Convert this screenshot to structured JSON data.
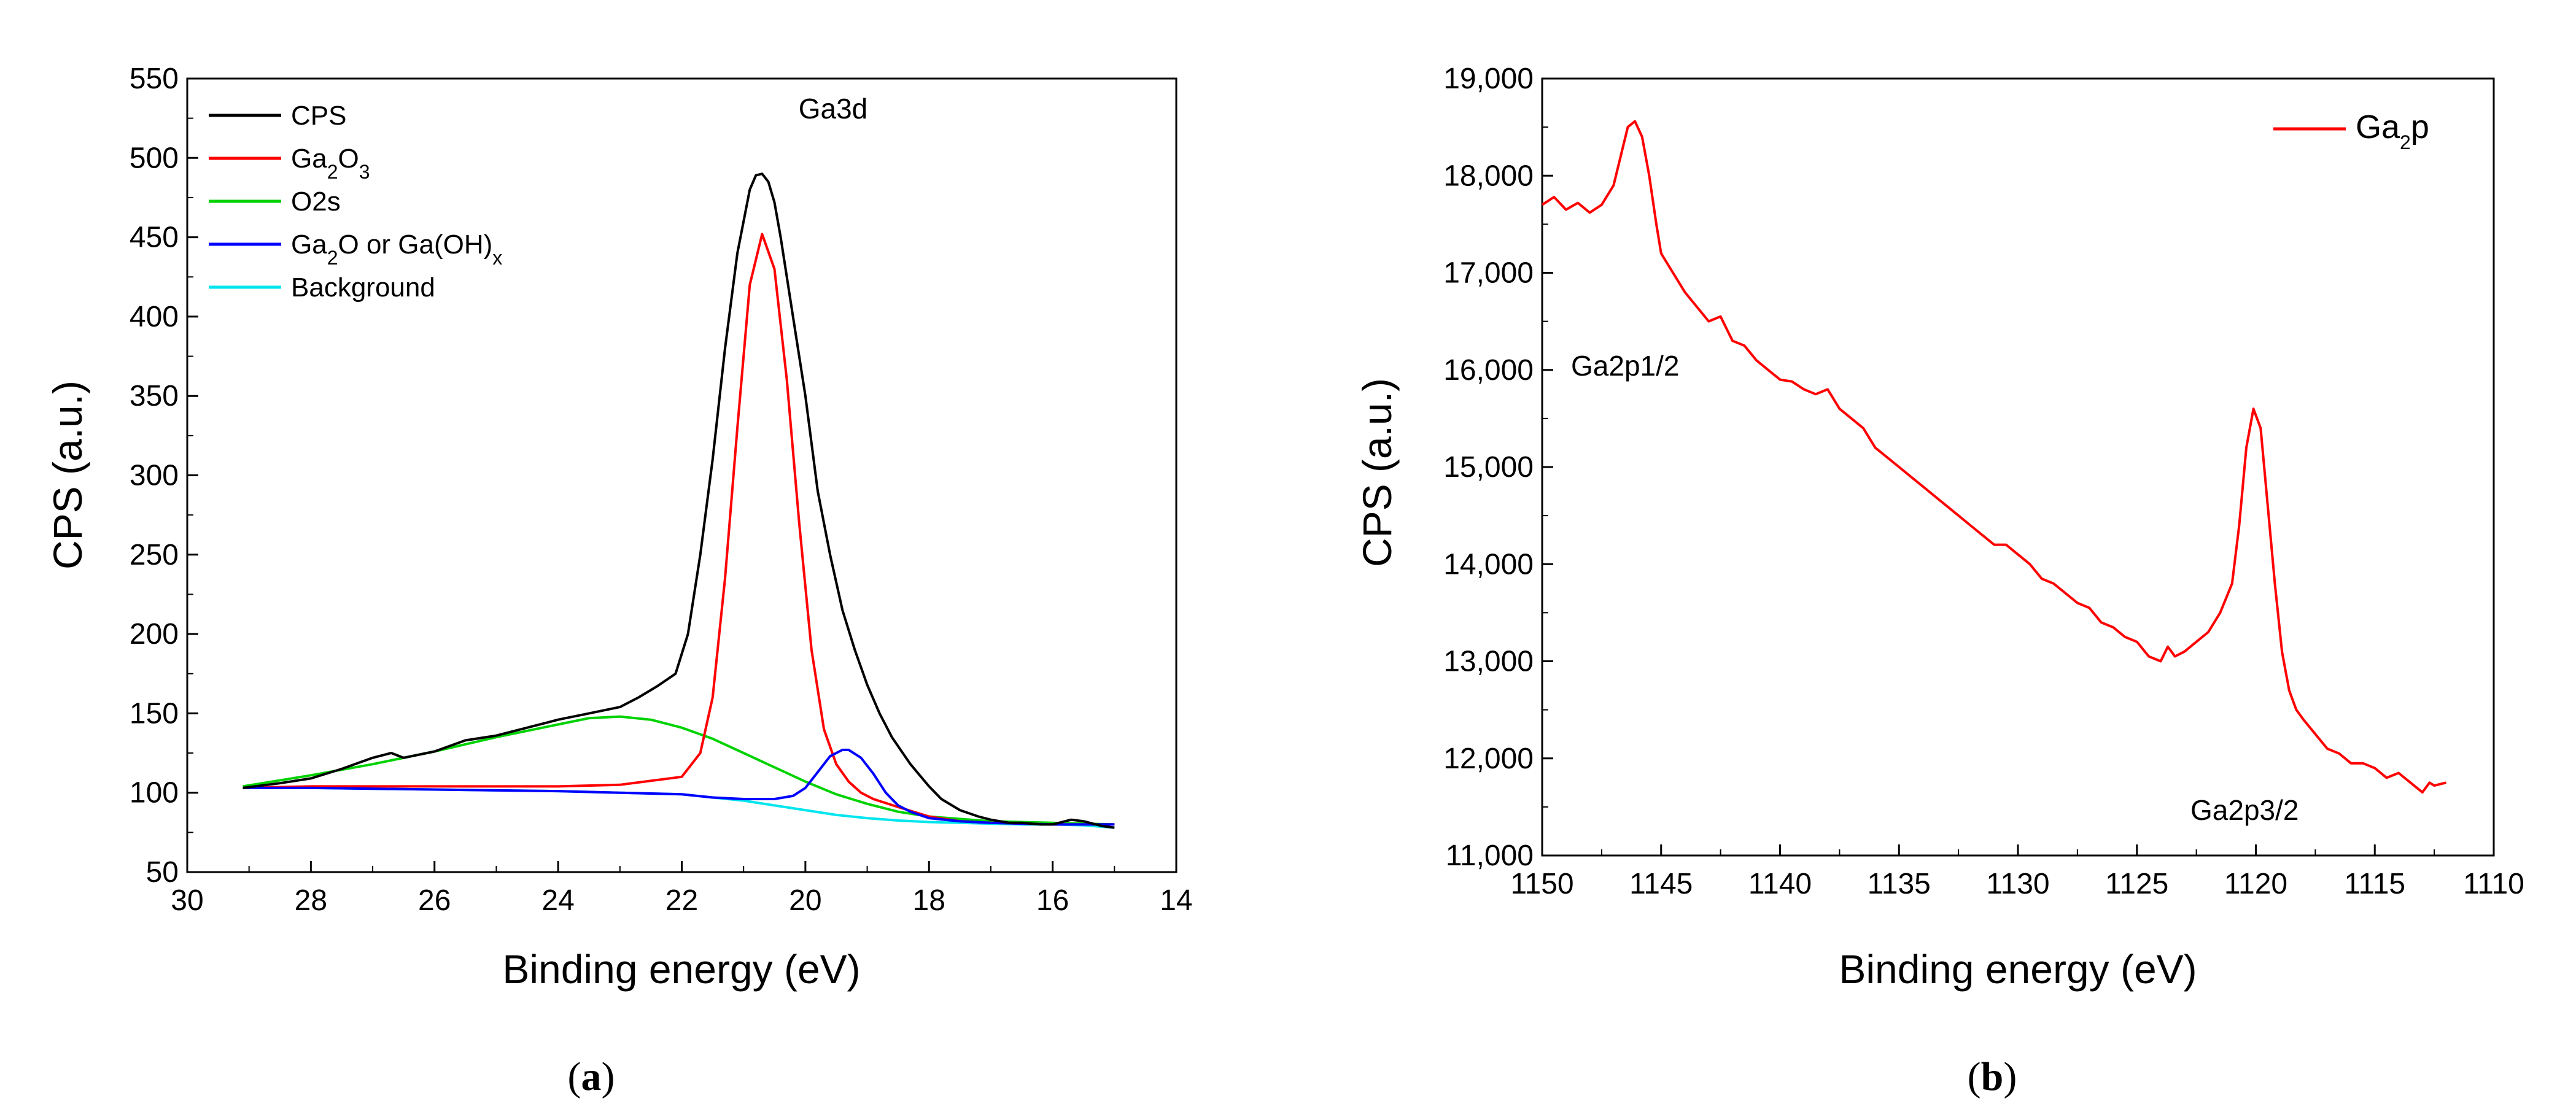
{
  "chart_data": [
    {
      "panel_label": "(a)",
      "panel_letter": "a",
      "type": "line",
      "xlabel": "Binding energy (eV)",
      "ylabel": "CPS (a.u.)",
      "xlim": [
        30,
        14
      ],
      "ylim": [
        50,
        550
      ],
      "x_ticks": [
        30,
        28,
        26,
        24,
        22,
        20,
        18,
        16,
        14
      ],
      "y_ticks": [
        50,
        100,
        150,
        200,
        250,
        300,
        350,
        400,
        450,
        500,
        550
      ],
      "annotation": "Ga3d",
      "legend_position": "top-left",
      "legend": [
        {
          "key": "cps",
          "label": "CPS",
          "color": "#000000"
        },
        {
          "key": "ga2o3",
          "label": "Ga2O3",
          "color": "#ff0000"
        },
        {
          "key": "o2s",
          "label": "O2s",
          "color": "#00d200"
        },
        {
          "key": "ga2o",
          "label": "Ga2O or Ga(OH)x",
          "color": "#0000ff"
        },
        {
          "key": "bg",
          "label": "Background",
          "color": "#00e5ee"
        }
      ],
      "series": [
        {
          "key": "bg",
          "name": "Background",
          "color": "#00e5ee",
          "x": [
            29.1,
            28,
            26,
            24,
            23,
            22,
            21.5,
            21,
            20.5,
            20,
            19.5,
            19,
            18.5,
            18,
            17.5,
            17,
            16.5,
            16,
            15.5,
            15
          ],
          "y": [
            103,
            103,
            102,
            101,
            100,
            99,
            97,
            95,
            92,
            89,
            86,
            84,
            82.5,
            81.5,
            81,
            80.5,
            80,
            80,
            79.5,
            78
          ]
        },
        {
          "key": "o2s",
          "name": "O2s",
          "color": "#00d200",
          "x": [
            29.1,
            28,
            27,
            26,
            25,
            24,
            23.5,
            23,
            22.5,
            22,
            21.5,
            21,
            20.5,
            20,
            19.5,
            19,
            18.5,
            18,
            17,
            16,
            15
          ],
          "y": [
            104,
            111,
            118,
            126,
            135,
            143,
            147,
            148,
            146,
            141,
            134,
            125,
            116,
            107,
            99,
            93,
            88,
            85,
            82,
            81,
            80
          ]
        },
        {
          "key": "ga2o3",
          "name": "Ga2O3",
          "color": "#ff0000",
          "x": [
            29.1,
            28,
            26,
            24,
            23,
            22,
            21.7,
            21.5,
            21.3,
            21.1,
            20.9,
            20.7,
            20.5,
            20.3,
            20.1,
            19.9,
            19.7,
            19.5,
            19.3,
            19.1,
            18.9,
            18.5,
            18,
            17.5,
            17,
            16,
            15
          ],
          "y": [
            103,
            104,
            104,
            104,
            105,
            110,
            125,
            160,
            235,
            330,
            420,
            452,
            430,
            360,
            270,
            190,
            140,
            118,
            107,
            100,
            96,
            91,
            85,
            82,
            81,
            80,
            80
          ]
        },
        {
          "key": "ga2o",
          "name": "Ga2O or Ga(OH)x",
          "color": "#0000ff",
          "x": [
            29.1,
            28,
            26,
            24,
            23,
            22,
            21.5,
            21,
            20.5,
            20.2,
            20,
            19.8,
            19.6,
            19.4,
            19.3,
            19.1,
            18.9,
            18.7,
            18.5,
            18.3,
            18,
            17.5,
            17,
            16,
            15
          ],
          "y": [
            103,
            103,
            102,
            101,
            100,
            99,
            97,
            96,
            96,
            98,
            103,
            113,
            123,
            127,
            127,
            122,
            112,
            100,
            92,
            88,
            84,
            82,
            81,
            80,
            80
          ]
        },
        {
          "key": "cps",
          "name": "CPS",
          "color": "#000000",
          "x": [
            29.1,
            28.5,
            28,
            27.5,
            27,
            26.7,
            26.5,
            26,
            25.5,
            25,
            24.5,
            24,
            23.5,
            23,
            22.7,
            22.4,
            22.1,
            21.9,
            21.7,
            21.5,
            21.3,
            21.1,
            20.9,
            20.8,
            20.7,
            20.6,
            20.5,
            20.4,
            20.2,
            20,
            19.8,
            19.6,
            19.4,
            19.2,
            19,
            18.8,
            18.6,
            18.3,
            18,
            17.8,
            17.5,
            17.2,
            17,
            16.7,
            16.5,
            16.2,
            16,
            15.7,
            15.5,
            15.2,
            15
          ],
          "y": [
            103,
            106,
            109,
            115,
            122,
            125,
            122,
            126,
            133,
            136,
            141,
            146,
            150,
            154,
            160,
            167,
            175,
            200,
            250,
            310,
            380,
            440,
            480,
            489,
            490,
            485,
            472,
            450,
            400,
            350,
            290,
            250,
            215,
            190,
            168,
            150,
            135,
            118,
            104,
            96,
            89,
            85,
            83,
            81,
            81,
            80,
            80,
            83,
            82,
            79,
            78
          ]
        }
      ]
    },
    {
      "panel_label": "(b)",
      "panel_letter": "b",
      "type": "line",
      "xlabel": "Binding energy (eV)",
      "ylabel": "CPS (a.u.)",
      "xlim": [
        1150,
        1110
      ],
      "ylim": [
        11000,
        19000
      ],
      "x_ticks": [
        1150,
        1145,
        1140,
        1135,
        1130,
        1125,
        1120,
        1115,
        1110
      ],
      "y_ticks": [
        11000,
        12000,
        13000,
        14000,
        15000,
        16000,
        17000,
        18000,
        19000
      ],
      "y_tick_labels": [
        "11,000",
        "12,000",
        "13,000",
        "14,000",
        "15,000",
        "16,000",
        "17,000",
        "18,000",
        "19,000"
      ],
      "legend_position": "top-right",
      "legend": [
        {
          "key": "ga2p",
          "label": "Ga2p",
          "color": "#ff0000"
        }
      ],
      "annotations": [
        {
          "text": "Ga2p1/2",
          "x": 1145.8,
          "y": 15950
        },
        {
          "text": "Ga2p3/2",
          "x": 1119.3,
          "y": 11950
        }
      ],
      "series": [
        {
          "key": "ga2p",
          "name": "Ga2p",
          "color": "#ff0000",
          "x": [
            1150,
            1149.5,
            1149,
            1148.5,
            1148,
            1147.5,
            1147,
            1146.7,
            1146.4,
            1146.1,
            1145.8,
            1145.5,
            1145.2,
            1145,
            1144.5,
            1144,
            1143.5,
            1143,
            1142.5,
            1142,
            1141.5,
            1141,
            1140.5,
            1140,
            1139.5,
            1139,
            1138.5,
            1138,
            1137.5,
            1137,
            1136.5,
            1136,
            1135.5,
            1135,
            1134.5,
            1134,
            1133.5,
            1133,
            1132.5,
            1132,
            1131.5,
            1131,
            1130.5,
            1130,
            1129.5,
            1129,
            1128.5,
            1128,
            1127.5,
            1127,
            1126.5,
            1126,
            1125.5,
            1125,
            1124.5,
            1124,
            1123.7,
            1123.4,
            1123,
            1122.5,
            1122,
            1121.5,
            1121,
            1120.7,
            1120.4,
            1120.1,
            1119.8,
            1119.5,
            1119.2,
            1118.9,
            1118.6,
            1118.3,
            1118,
            1117.5,
            1117,
            1116.5,
            1116,
            1115.5,
            1115,
            1114.5,
            1114,
            1113.5,
            1113,
            1112.7,
            1112.5,
            1112
          ],
          "y": [
            17700,
            17780,
            17650,
            17720,
            17620,
            17700,
            17900,
            18200,
            18500,
            18560,
            18400,
            18000,
            17500,
            17200,
            17000,
            16800,
            16650,
            16500,
            16550,
            16300,
            16250,
            16100,
            16000,
            15900,
            15880,
            15800,
            15750,
            15800,
            15600,
            15500,
            15400,
            15200,
            15100,
            15000,
            14900,
            14800,
            14700,
            14600,
            14500,
            14400,
            14300,
            14200,
            14200,
            14100,
            14000,
            13850,
            13800,
            13700,
            13600,
            13550,
            13400,
            13350,
            13250,
            13200,
            13050,
            13000,
            13150,
            13050,
            13100,
            13200,
            13300,
            13500,
            13800,
            14400,
            15200,
            15600,
            15400,
            14600,
            13800,
            13100,
            12700,
            12500,
            12400,
            12250,
            12100,
            12050,
            11950,
            11950,
            11900,
            11800,
            11850,
            11750,
            11650,
            11750,
            11720,
            11750
          ]
        }
      ]
    }
  ]
}
